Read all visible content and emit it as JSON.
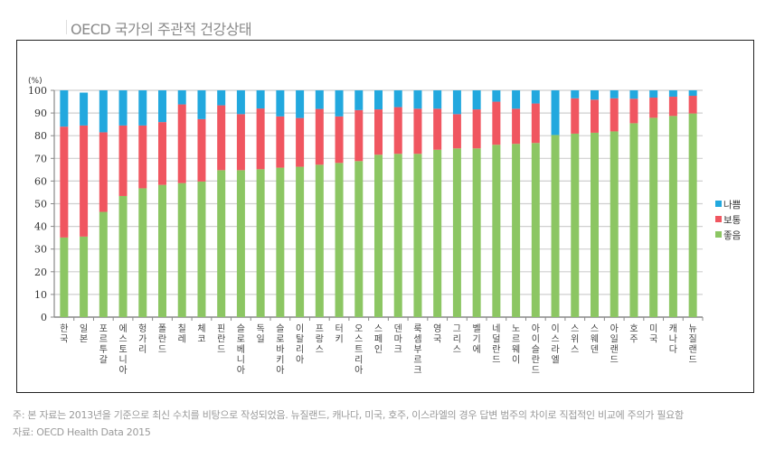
{
  "title": "OECD 국가의 주관적 건강상태",
  "footnote": "주: 본 자료는 2013년을 기준으로 최신 수치를 비탕으로 작성되었음. 뉴질랜드, 캐나다, 미국, 호주, 이스라엘의 경우 답변 범주의 차이로 직접적인 비교에 주의가 필요함",
  "source": "자료: OECD Health Data 2015",
  "chart_data": {
    "type": "bar",
    "stacked": true,
    "title": "OECD 국가의 주관적 건강상태",
    "ylabel": "(%)",
    "xlabel": "",
    "ylim": [
      0,
      100
    ],
    "yticks": [
      "0",
      "10",
      "20",
      "30",
      "40",
      "50",
      "60",
      "70",
      "80",
      "90",
      "100"
    ],
    "grid": true,
    "legend_position": "right",
    "categories": [
      "한국",
      "일본",
      "포르투갈",
      "에스토니아",
      "헝가리",
      "폴란드",
      "칠레",
      "체코",
      "핀란드",
      "슬로베니아",
      "독일",
      "슬로바키아",
      "이탈리아",
      "프랑스",
      "터키",
      "오스트리아",
      "스페인",
      "덴마크",
      "룩셈부르크",
      "영국",
      "그리스",
      "벨기에",
      "네덜란드",
      "노르웨이",
      "아이슬란드",
      "이스라엘",
      "스위스",
      "스웨덴",
      "아일랜드",
      "호주",
      "미국",
      "캐나다",
      "뉴질랜드"
    ],
    "series": [
      {
        "name": "좋음",
        "color": "#8cc663",
        "values": [
          35.1,
          35.5,
          46.4,
          53.4,
          56.8,
          58.3,
          59.1,
          59.8,
          64.8,
          64.8,
          65.2,
          65.9,
          66.3,
          67.2,
          68.0,
          68.8,
          71.6,
          72.0,
          72.0,
          73.8,
          74.4,
          74.4,
          76.0,
          76.4,
          76.8,
          80.3,
          80.9,
          81.3,
          81.9,
          85.5,
          87.9,
          88.7,
          89.8
        ]
      },
      {
        "name": "보통",
        "color": "#f05660",
        "values": [
          48.9,
          49.0,
          35.1,
          31.1,
          27.7,
          27.7,
          34.7,
          27.5,
          28.6,
          24.7,
          26.8,
          22.6,
          21.5,
          24.6,
          20.5,
          22.5,
          20.0,
          20.6,
          19.9,
          18.1,
          15.1,
          17.2,
          19.0,
          15.5,
          17.4,
          0,
          15.6,
          14.6,
          14.6,
          10.8,
          8.9,
          8.5,
          7.8
        ]
      },
      {
        "name": "나쁨",
        "color": "#22a8de",
        "values": [
          16.0,
          14.5,
          18.5,
          15.5,
          15.5,
          14.0,
          6.2,
          12.7,
          6.6,
          10.5,
          8.0,
          11.5,
          12.2,
          8.2,
          11.5,
          8.7,
          8.4,
          7.4,
          8.1,
          8.1,
          10.5,
          8.4,
          5.0,
          8.1,
          5.8,
          19.7,
          3.5,
          4.1,
          3.5,
          3.7,
          3.2,
          2.8,
          2.4
        ]
      }
    ]
  }
}
